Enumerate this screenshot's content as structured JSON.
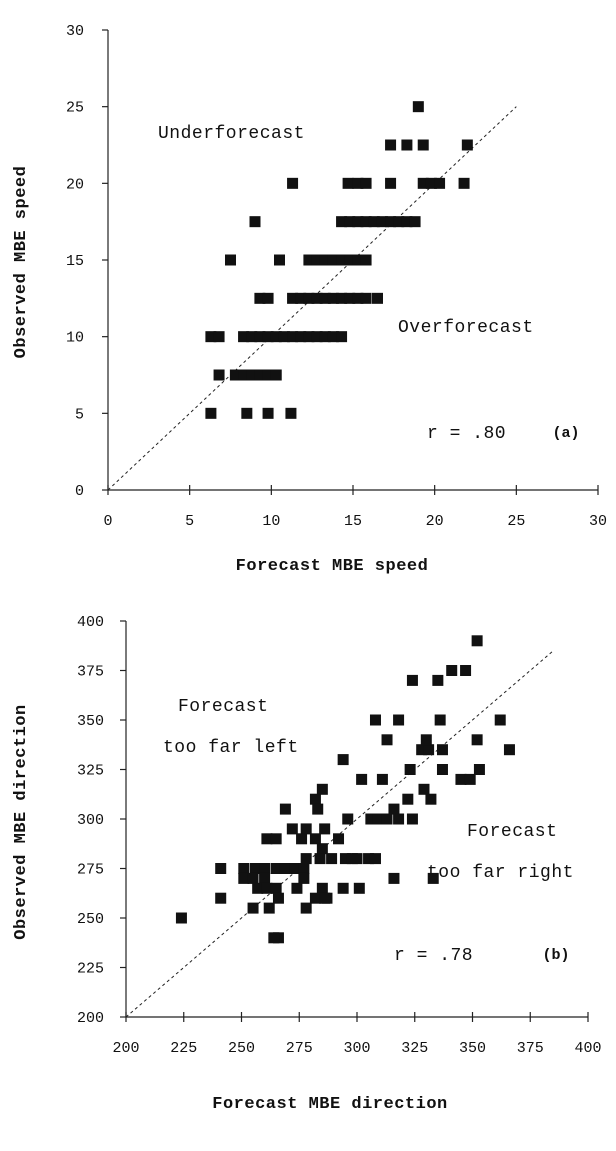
{
  "chart_data": [
    {
      "id": "a",
      "type": "scatter",
      "xlabel": "Forecast MBE speed",
      "ylabel": "Observed MBE speed",
      "xlim": [
        0,
        30
      ],
      "ylim": [
        0,
        30
      ],
      "xticks": [
        "0",
        "5",
        "10",
        "15",
        "20",
        "25",
        "30"
      ],
      "yticks": [
        "0",
        "5",
        "10",
        "15",
        "20",
        "25",
        "30"
      ],
      "reference_line": "y = x",
      "annotations": {
        "upper": "Underforecast",
        "lower": "Overforecast",
        "stat": "r  =  .80",
        "panel": "(a)"
      },
      "x": [
        19.0,
        17.3,
        18.3,
        19.3,
        22.0,
        11.3,
        14.7,
        15.3,
        15.8,
        17.3,
        19.3,
        19.8,
        20.3,
        21.8,
        9.0,
        14.3,
        14.8,
        15.3,
        15.8,
        16.3,
        16.8,
        17.3,
        17.8,
        18.3,
        18.8,
        7.5,
        10.5,
        12.3,
        12.8,
        13.3,
        13.8,
        14.3,
        14.8,
        15.3,
        15.8,
        9.3,
        9.8,
        11.3,
        11.8,
        12.3,
        12.8,
        13.3,
        13.8,
        14.3,
        14.8,
        15.3,
        15.8,
        16.5,
        6.3,
        6.8,
        8.3,
        8.8,
        9.3,
        9.8,
        10.3,
        10.8,
        11.3,
        11.8,
        12.3,
        12.8,
        13.3,
        13.8,
        14.3,
        6.8,
        7.8,
        8.3,
        8.8,
        9.3,
        9.8,
        10.3,
        6.3,
        8.5,
        9.8,
        11.2
      ],
      "y": [
        25.0,
        22.5,
        22.5,
        22.5,
        22.5,
        20.0,
        20.0,
        20.0,
        20.0,
        20.0,
        20.0,
        20.0,
        20.0,
        20.0,
        17.5,
        17.5,
        17.5,
        17.5,
        17.5,
        17.5,
        17.5,
        17.5,
        17.5,
        17.5,
        17.5,
        15.0,
        15.0,
        15.0,
        15.0,
        15.0,
        15.0,
        15.0,
        15.0,
        15.0,
        15.0,
        12.5,
        12.5,
        12.5,
        12.5,
        12.5,
        12.5,
        12.5,
        12.5,
        12.5,
        12.5,
        12.5,
        12.5,
        12.5,
        10.0,
        10.0,
        10.0,
        10.0,
        10.0,
        10.0,
        10.0,
        10.0,
        10.0,
        10.0,
        10.0,
        10.0,
        10.0,
        10.0,
        10.0,
        7.5,
        7.5,
        7.5,
        7.5,
        7.5,
        7.5,
        7.5,
        5.0,
        5.0,
        5.0,
        5.0
      ]
    },
    {
      "id": "b",
      "type": "scatter",
      "xlabel": "Forecast MBE direction",
      "ylabel": "Observed MBE direction",
      "xlim": [
        200,
        400
      ],
      "ylim": [
        200,
        400
      ],
      "xticks": [
        "200",
        "225",
        "250",
        "275",
        "300",
        "325",
        "350",
        "375",
        "400"
      ],
      "yticks": [
        "200",
        "225",
        "250",
        "275",
        "300",
        "325",
        "350",
        "375",
        "400"
      ],
      "reference_line": "y = x",
      "annotations": {
        "upper_line1": "Forecast",
        "upper_line2": "too far left",
        "lower_line1": "Forecast",
        "lower_line2": "too far right",
        "stat": "r  =  .78",
        "panel": "(b)"
      },
      "x": [
        352,
        341,
        347,
        324,
        335,
        362,
        308,
        318,
        336,
        352,
        366,
        294,
        328,
        331,
        337,
        313,
        330,
        345,
        349,
        302,
        311,
        323,
        337,
        353,
        322,
        332,
        269,
        282,
        285,
        316,
        329,
        283,
        261,
        265,
        296,
        306,
        309,
        313,
        318,
        324,
        272,
        278,
        286,
        292,
        276,
        282,
        285,
        278,
        284,
        289,
        295,
        298,
        300,
        305,
        308,
        241,
        251,
        256,
        260,
        265,
        269,
        273,
        277,
        316,
        333,
        251,
        255,
        260,
        277,
        285,
        294,
        301,
        257,
        261,
        265,
        274,
        282,
        286,
        241,
        266,
        287,
        224,
        255,
        278,
        262,
        266,
        264
      ],
      "y": [
        390,
        375,
        375,
        370,
        370,
        350,
        350,
        350,
        350,
        340,
        335,
        330,
        335,
        335,
        335,
        340,
        340,
        320,
        320,
        320,
        320,
        325,
        325,
        325,
        310,
        310,
        305,
        310,
        315,
        305,
        315,
        305,
        290,
        290,
        300,
        300,
        300,
        300,
        300,
        300,
        295,
        295,
        295,
        290,
        290,
        290,
        285,
        280,
        280,
        280,
        280,
        280,
        280,
        280,
        280,
        275,
        275,
        275,
        275,
        275,
        275,
        275,
        275,
        270,
        270,
        270,
        270,
        270,
        270,
        265,
        265,
        265,
        265,
        265,
        265,
        265,
        260,
        260,
        260,
        260,
        260,
        250,
        255,
        255,
        255,
        240,
        240
      ]
    }
  ]
}
